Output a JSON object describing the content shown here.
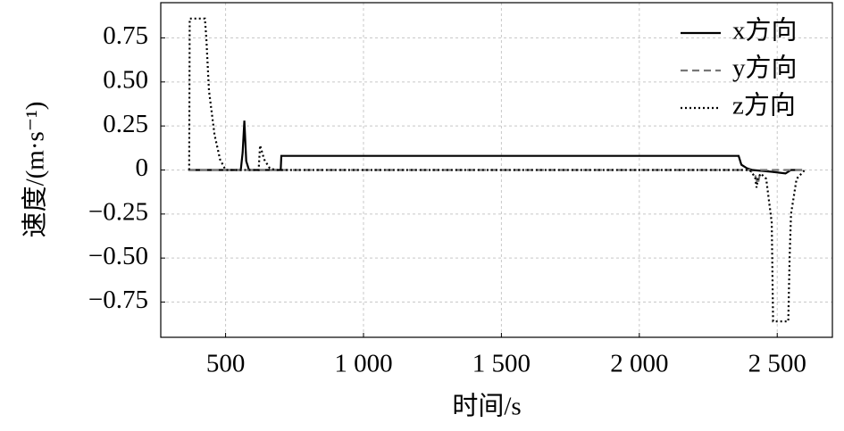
{
  "chart_data": {
    "type": "line",
    "x_label": "时间/s",
    "y_label": "速度/(m·s⁻¹)",
    "xlim": [
      265,
      2700
    ],
    "ylim": [
      -0.95,
      0.95
    ],
    "xticks": [
      500,
      {
        "value": 1000,
        "label": "1 000"
      },
      {
        "value": 1500,
        "label": "1 500"
      },
      {
        "value": 2000,
        "label": "2 000"
      },
      {
        "value": 2500,
        "label": "2 500"
      }
    ],
    "yticks": [
      {
        "value": -0.75,
        "label": "−0.75"
      },
      {
        "value": -0.5,
        "label": "−0.50"
      },
      {
        "value": -0.25,
        "label": "−0.25"
      },
      0,
      0.25,
      {
        "value": 0.5,
        "label": "0.50"
      },
      0.75
    ],
    "grid": true,
    "legend": "upper right",
    "series": [
      {
        "name": "x方向",
        "color": "#000000",
        "dash": "solid",
        "x": [
          365,
          555,
          562,
          568,
          575,
          585,
          700,
          702,
          2360,
          2370,
          2390,
          2410,
          2480,
          2530,
          2550,
          2590
        ],
        "values": [
          0,
          0,
          0.1,
          0.28,
          0.05,
          0,
          0,
          0.08,
          0.08,
          0.03,
          0.01,
          0,
          -0.01,
          -0.02,
          0,
          0
        ]
      },
      {
        "name": "y方向",
        "color": "#777777",
        "dash": "dashed",
        "x": [
          365,
          2400,
          2420,
          2430,
          2440,
          2600
        ],
        "values": [
          0,
          0,
          -0.03,
          -0.08,
          0,
          0
        ]
      },
      {
        "name": "z方向",
        "color": "#000000",
        "dash": "dotted",
        "x": [
          368,
          370,
          425,
          430,
          440,
          460,
          480,
          500,
          620,
          625,
          640,
          660,
          680,
          2400,
          2420,
          2425,
          2430,
          2440,
          2460,
          2480,
          2485,
          2540,
          2545,
          2550,
          2570,
          2600
        ],
        "values": [
          0,
          0.86,
          0.86,
          0.75,
          0.45,
          0.2,
          0.06,
          0,
          0,
          0.14,
          0.06,
          0.01,
          0,
          0,
          -0.04,
          -0.1,
          -0.05,
          -0.02,
          -0.05,
          -0.3,
          -0.86,
          -0.86,
          -0.5,
          -0.25,
          -0.05,
          0
        ]
      }
    ]
  }
}
